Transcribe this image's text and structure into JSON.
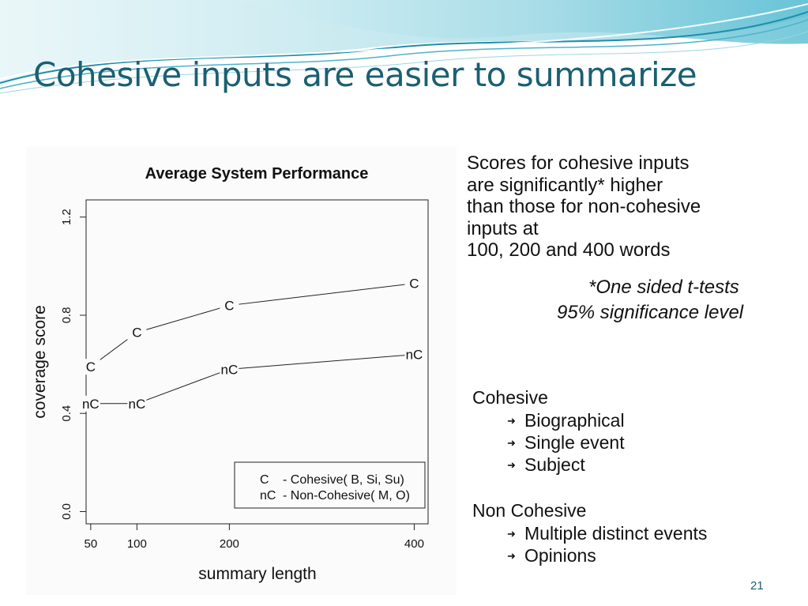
{
  "slide": {
    "title": "Cohesive inputs are easier to summarize",
    "page_number": "21",
    "colors": {
      "title": "#1b5f73",
      "wave_light": "#bfe7ee",
      "wave_mid": "#7fcfdd",
      "wave_dark": "#1f8ea8"
    }
  },
  "findings": {
    "lines": [
      "Scores for cohesive inputs",
      "are significantly* higher",
      "than those for non-cohesive",
      "inputs at",
      "100, 200 and 400 words"
    ],
    "note_line1": "*One sided t-tests",
    "note_line2": "95% significance level"
  },
  "categories": {
    "cohesive": {
      "label": "Cohesive",
      "items": [
        "Biographical",
        "Single event",
        "Subject"
      ]
    },
    "non_cohesive": {
      "label": "Non Cohesive",
      "items": [
        "Multiple distinct events",
        "Opinions"
      ]
    }
  },
  "chart_data": {
    "type": "line",
    "title": "Average System Performance",
    "xlabel": "summary length",
    "ylabel": "coverage score",
    "x": [
      50,
      100,
      200,
      400
    ],
    "x_ticks": [
      "50",
      "100",
      "200",
      "400"
    ],
    "y_ticks": [
      "0.0",
      "0.4",
      "0.8",
      "1.2"
    ],
    "xlim": [
      45,
      415
    ],
    "ylim": [
      -0.05,
      1.27
    ],
    "series": [
      {
        "name": "Cohesive( B, Si, Su)",
        "marker": "C",
        "values": [
          0.59,
          0.73,
          0.84,
          0.93
        ]
      },
      {
        "name": "Non-Cohesive( M, O)",
        "marker": "nC",
        "values": [
          0.44,
          0.44,
          0.58,
          0.64
        ]
      }
    ],
    "legend": {
      "position": "bottom-right",
      "entries": [
        {
          "marker": "C",
          "text": "- Cohesive( B, Si, Su)"
        },
        {
          "marker": "nC",
          "text": "- Non-Cohesive( M, O)"
        }
      ]
    },
    "grid": false
  }
}
